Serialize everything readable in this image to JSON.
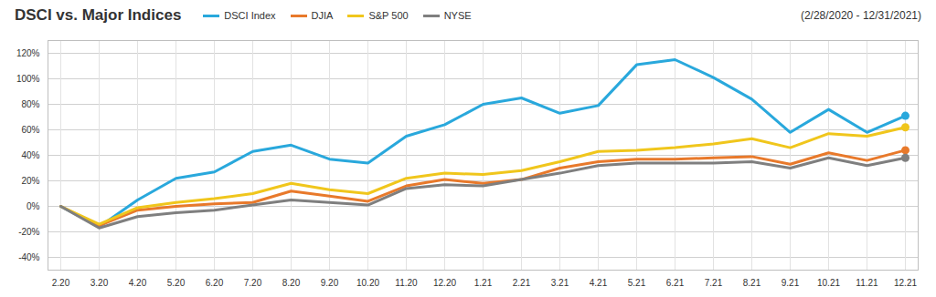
{
  "chart_data": {
    "type": "line",
    "title": "DSCI vs. Major Indices",
    "subtitle": "(2/28/2020 - 12/31/2021)",
    "categories": [
      "2.20",
      "3.20",
      "4.20",
      "5.20",
      "6.20",
      "7.20",
      "8.20",
      "9.20",
      "10.20",
      "11.20",
      "12.20",
      "1.21",
      "2.21",
      "3.21",
      "4.21",
      "5.21",
      "6.21",
      "7.21",
      "8.21",
      "9.21",
      "10.21",
      "11.21",
      "12.21"
    ],
    "series": [
      {
        "name": "DSCI Index",
        "color": "#29a8dc",
        "values": [
          0,
          -16,
          5,
          22,
          27,
          43,
          48,
          37,
          34,
          55,
          64,
          80,
          85,
          73,
          79,
          111,
          115,
          101,
          84,
          58,
          76,
          58,
          71
        ]
      },
      {
        "name": "DJIA",
        "color": "#e8792b",
        "values": [
          0,
          -15,
          -3,
          0,
          2,
          3,
          12,
          8,
          4,
          16,
          21,
          18,
          21,
          30,
          35,
          37,
          37,
          38,
          39,
          33,
          42,
          36,
          44
        ]
      },
      {
        "name": "S&P 500",
        "color": "#f0c61c",
        "values": [
          0,
          -14,
          -1,
          3,
          6,
          10,
          18,
          13,
          10,
          22,
          26,
          25,
          28,
          35,
          43,
          44,
          46,
          49,
          53,
          46,
          57,
          55,
          62
        ]
      },
      {
        "name": "NYSE",
        "color": "#7f7f7f",
        "values": [
          0,
          -17,
          -8,
          -5,
          -3,
          1,
          5,
          3,
          1,
          14,
          17,
          16,
          21,
          26,
          32,
          34,
          34,
          34,
          35,
          30,
          38,
          32,
          38
        ]
      }
    ],
    "ylim": [
      -50,
      130
    ],
    "yticks": [
      {
        "value": -40,
        "label": "-40%"
      },
      {
        "value": -20,
        "label": "-20%"
      },
      {
        "value": 0,
        "label": "0%"
      },
      {
        "value": 20,
        "label": "20%"
      },
      {
        "value": 40,
        "label": "40%"
      },
      {
        "value": 60,
        "label": "60%"
      },
      {
        "value": 80,
        "label": "80%"
      },
      {
        "value": 100,
        "label": "100%"
      },
      {
        "value": 120,
        "label": "120%"
      }
    ],
    "grid": true,
    "marker": "end",
    "legend": "top"
  }
}
